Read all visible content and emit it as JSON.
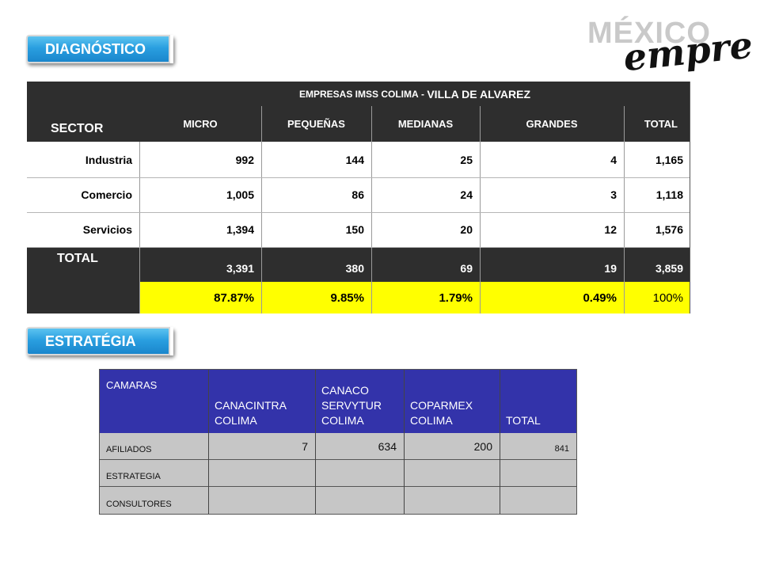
{
  "sections": {
    "diagnostico": "DIAGNÓSTICO",
    "estrategia": "ESTRATÉGIA"
  },
  "logo": {
    "top_text": "MÉXICO",
    "script_text": "emprende"
  },
  "diagnostic_table": {
    "sector_header": "SECTOR",
    "title_main": "EMPRESAS IMSS COLIMA",
    "title_sep": "- ",
    "title_place": "VILLA DE ALVAREZ",
    "columns": [
      "MICRO",
      "PEQUEÑAS",
      "MEDIANAS",
      "GRANDES",
      "TOTAL"
    ],
    "rows": [
      {
        "sector": "Industria",
        "values": [
          "992",
          "144",
          "25",
          "4",
          "1,165"
        ]
      },
      {
        "sector": "Comercio",
        "values": [
          "1,005",
          "86",
          "24",
          "3",
          "1,118"
        ]
      },
      {
        "sector": "Servicios",
        "values": [
          "1,394",
          "150",
          "20",
          "12",
          "1,576"
        ]
      }
    ],
    "total_label": "TOTAL",
    "total_values": [
      "3,391",
      "380",
      "69",
      "19",
      "3,859"
    ],
    "percent_values": [
      "87.87%",
      "9.85%",
      "1.79%",
      "0.49%",
      "100%"
    ]
  },
  "camaras_table": {
    "headers": [
      "CAMARAS",
      "CANACINTRA COLIMA",
      "CANACO SERVYTUR COLIMA",
      "COPARMEX COLIMA",
      "TOTAL"
    ],
    "rows": [
      {
        "label": "AFILIADOS",
        "values": [
          "7",
          "634",
          "200",
          "841"
        ]
      },
      {
        "label": "ESTRATEGIA",
        "values": [
          "",
          "",
          "",
          ""
        ]
      },
      {
        "label": "CONSULTORES",
        "values": [
          "",
          "",
          "",
          ""
        ]
      }
    ]
  },
  "colors": {
    "pill": "#2a9fe0",
    "table_dark": "#2e2e2e",
    "percent_row": "#ffff00",
    "camaras_header": "#3333aa",
    "camaras_body": "#c6c6c6"
  }
}
